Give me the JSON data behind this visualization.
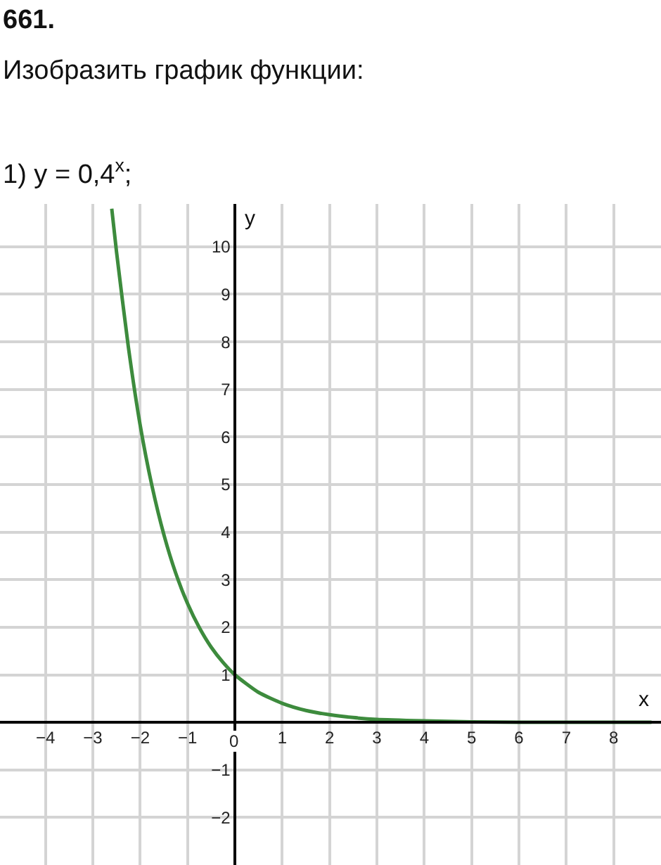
{
  "chart_data": {
    "type": "line",
    "title": "661.",
    "subtitle": "Изобразить график функции:",
    "annotations": [
      "1) y = 0,4$^{x}$;"
    ],
    "xlabel": "x",
    "ylabel": "y",
    "x": [
      -2.6,
      -2.5,
      -2.25,
      -2,
      -1.75,
      -1.5,
      -1.25,
      -1,
      -0.75,
      -0.5,
      -0.25,
      0,
      0.5,
      1,
      1.5,
      2,
      2.5,
      3,
      4,
      5,
      6,
      8.8
    ],
    "series": [
      {
        "color": "#3d8b3d",
        "values": [
          10.8,
          9.9,
          7.9,
          6.25,
          4.97,
          3.95,
          3.14,
          2.5,
          1.99,
          1.58,
          1.26,
          1,
          0.63,
          0.4,
          0.25,
          0.16,
          0.1,
          0.06,
          0.03,
          0.01,
          0,
          0
        ]
      }
    ],
    "xlim": [
      -4.96,
      9.0
    ],
    "ylim": [
      -3.0,
      10.9
    ],
    "xticks": [
      -4,
      -3,
      -2,
      -1,
      0,
      1,
      2,
      3,
      4,
      5,
      6,
      7,
      8
    ],
    "yticks": [
      -2,
      -1,
      1,
      2,
      3,
      4,
      5,
      6,
      7,
      8,
      9,
      10
    ],
    "grid": true,
    "marker": "none",
    "line_style": "solid"
  }
}
